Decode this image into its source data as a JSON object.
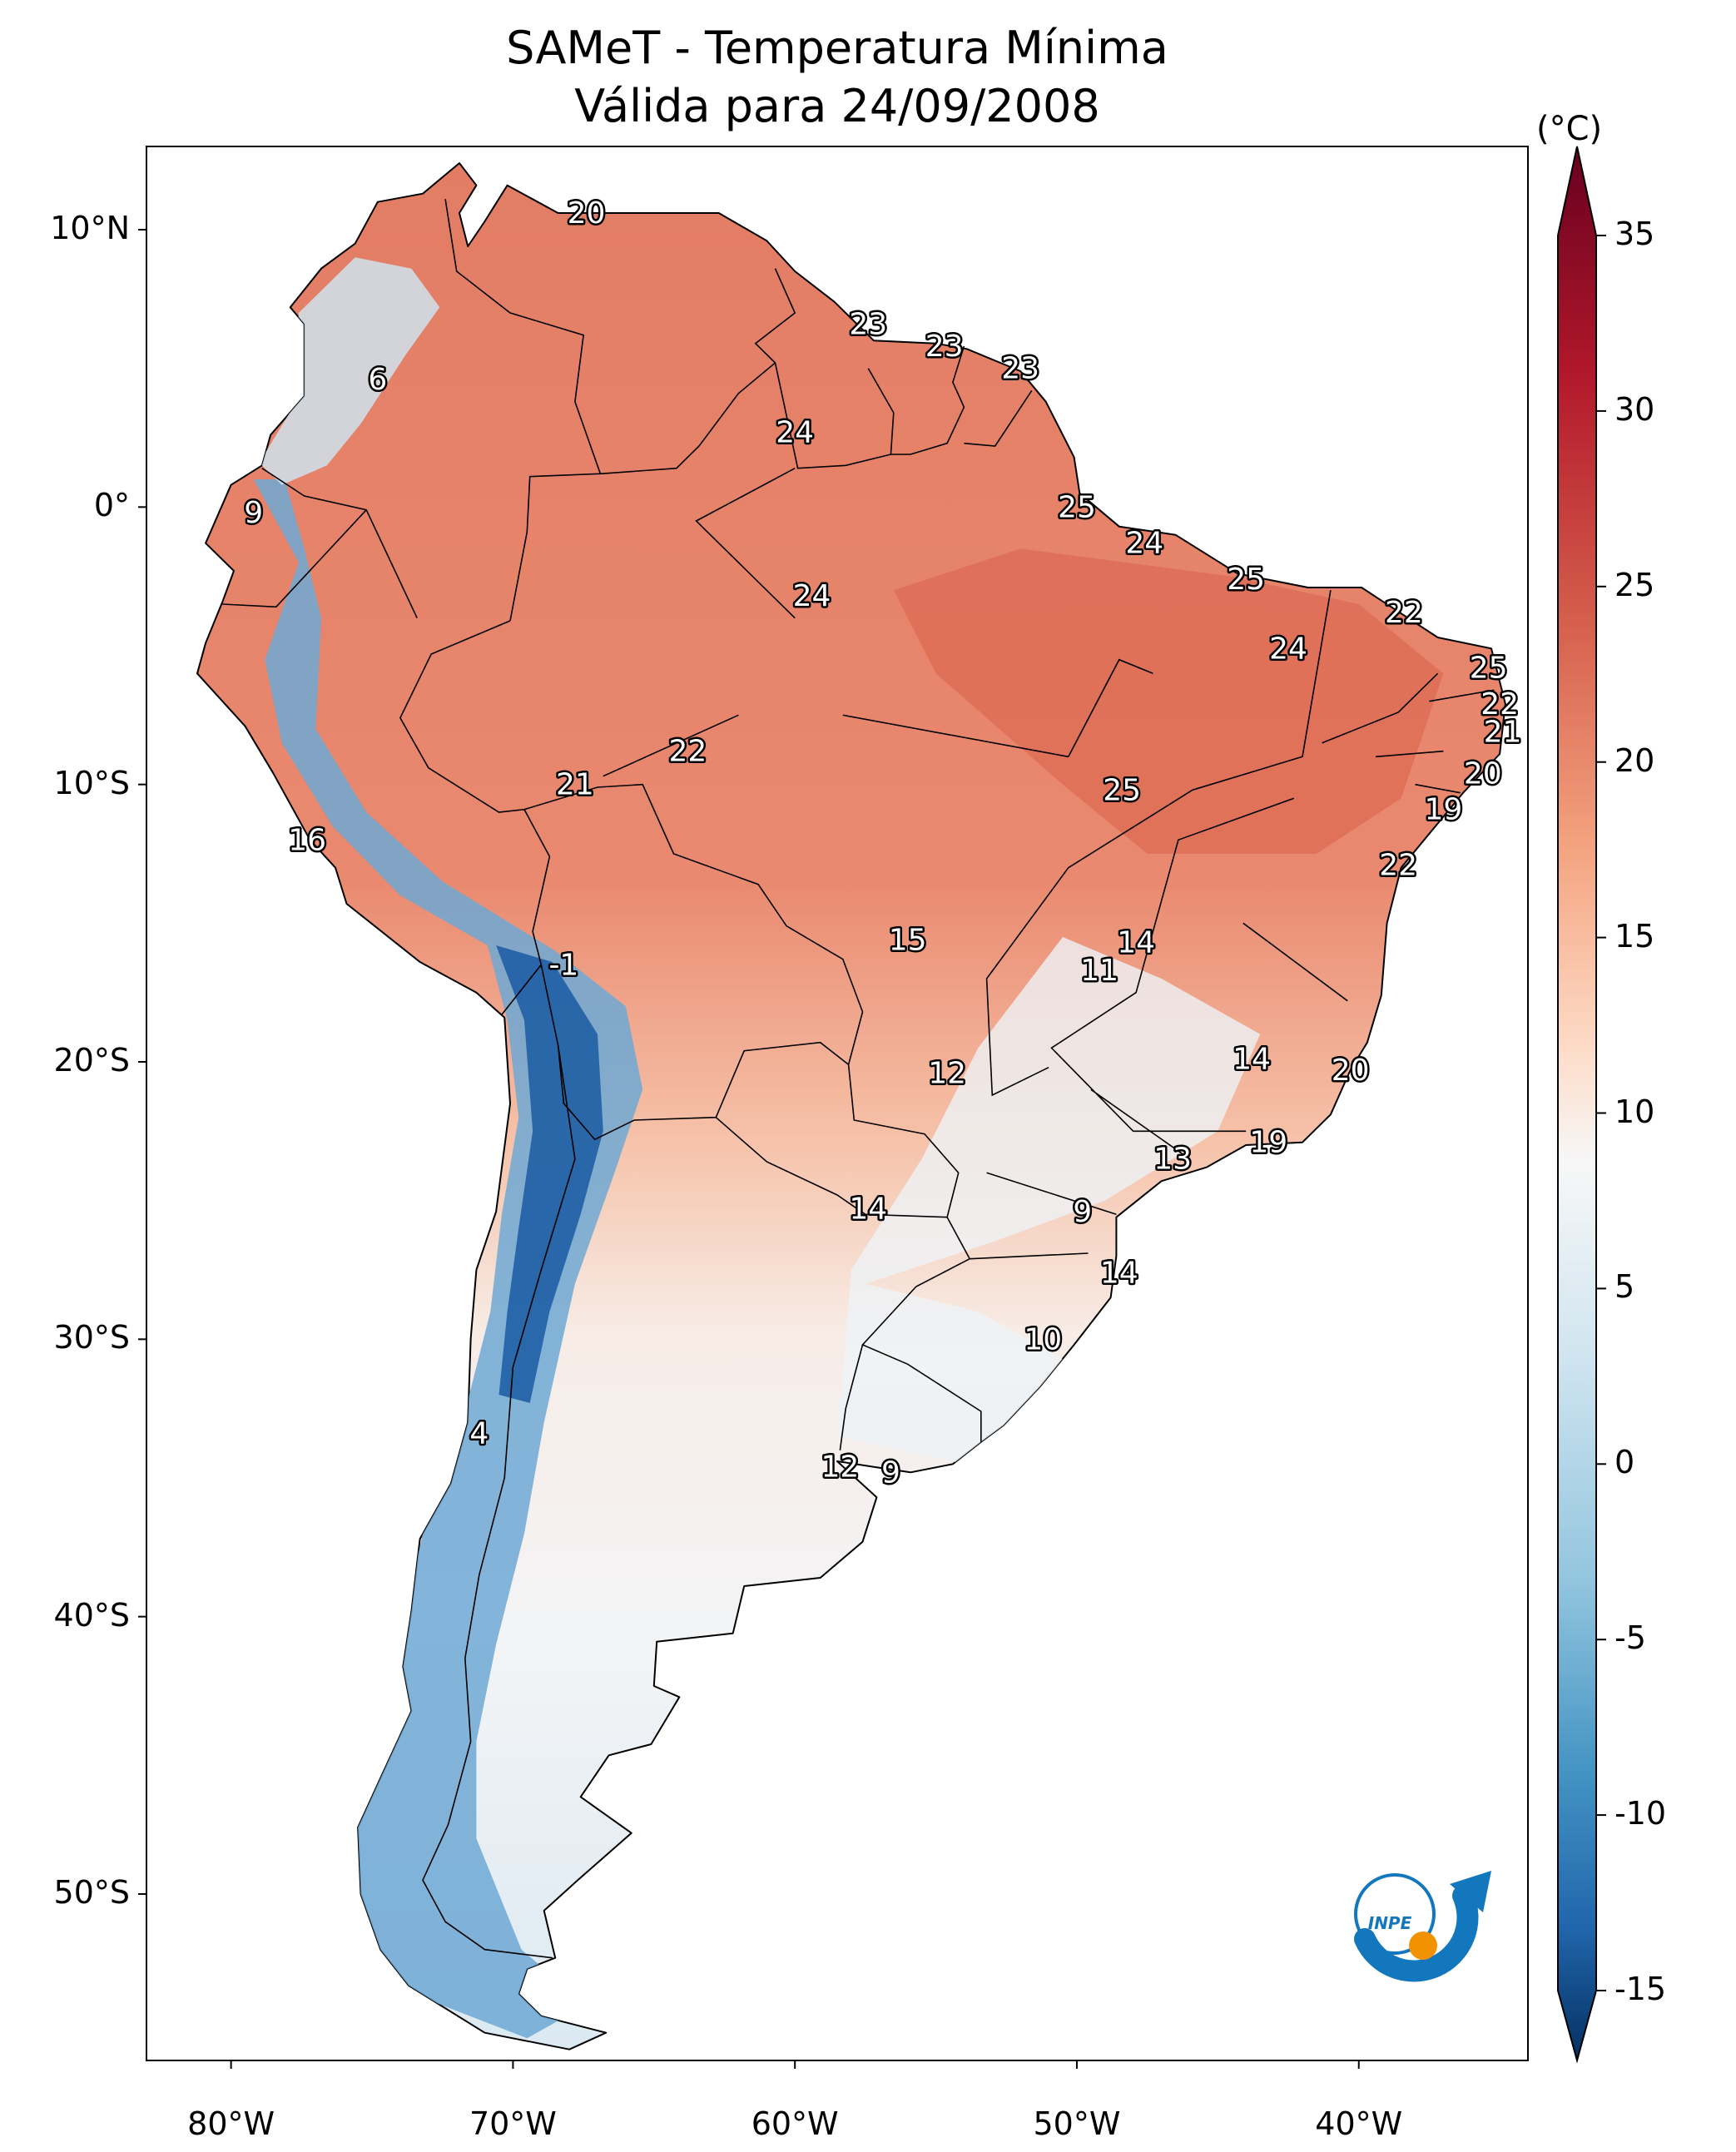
{
  "title_line1": "SAMeT - Temperatura Mínima",
  "title_line2": "Válida para 24/09/2008",
  "unit_label": "(°C)",
  "lat_labels": [
    "10°N",
    "0°",
    "10°S",
    "20°S",
    "30°S",
    "40°S",
    "50°S"
  ],
  "lon_labels": [
    "80°W",
    "70°W",
    "60°W",
    "50°W",
    "40°W"
  ],
  "colorbar": {
    "ticks": [
      "35",
      "30",
      "25",
      "20",
      "15",
      "10",
      "5",
      "0",
      "-5",
      "-10",
      "-15"
    ],
    "range": [
      -15,
      35
    ],
    "colormap": "RdBu_r",
    "extend": "both",
    "low_color": "#08306b",
    "mid_color": "#f7f7f7",
    "high_color": "#67001f"
  },
  "map_extent": {
    "lon": [
      -83,
      -34
    ],
    "lat": [
      -56,
      13
    ]
  },
  "logo_text": "INPE",
  "station_values": [
    {
      "label": "20",
      "lon": -67.4,
      "lat": 10.6
    },
    {
      "label": "6",
      "lon": -74.8,
      "lat": 4.6
    },
    {
      "label": "23",
      "lon": -57.4,
      "lat": 6.6
    },
    {
      "label": "23",
      "lon": -54.7,
      "lat": 5.8
    },
    {
      "label": "23",
      "lon": -52.0,
      "lat": 5.0
    },
    {
      "label": "24",
      "lon": -60.0,
      "lat": 2.7
    },
    {
      "label": "9",
      "lon": -79.2,
      "lat": -0.2
    },
    {
      "label": "25",
      "lon": -50.0,
      "lat": 0.0
    },
    {
      "label": "24",
      "lon": -47.6,
      "lat": -1.3
    },
    {
      "label": "25",
      "lon": -44.0,
      "lat": -2.6
    },
    {
      "label": "22",
      "lon": -38.4,
      "lat": -3.8
    },
    {
      "label": "24",
      "lon": -59.4,
      "lat": -3.2
    },
    {
      "label": "24",
      "lon": -42.5,
      "lat": -5.1
    },
    {
      "label": "25",
      "lon": -35.4,
      "lat": -5.8
    },
    {
      "label": "22",
      "lon": -35.0,
      "lat": -7.1
    },
    {
      "label": "21",
      "lon": -34.9,
      "lat": -8.1
    },
    {
      "label": "22",
      "lon": -63.8,
      "lat": -8.8
    },
    {
      "label": "21",
      "lon": -67.8,
      "lat": -10.0
    },
    {
      "label": "25",
      "lon": -48.4,
      "lat": -10.2
    },
    {
      "label": "20",
      "lon": -35.6,
      "lat": -9.6
    },
    {
      "label": "19",
      "lon": -37.0,
      "lat": -10.9
    },
    {
      "label": "16",
      "lon": -77.3,
      "lat": -12.0
    },
    {
      "label": "22",
      "lon": -38.6,
      "lat": -12.9
    },
    {
      "label": "15",
      "lon": -56.0,
      "lat": -15.6
    },
    {
      "label": "14",
      "lon": -47.9,
      "lat": -15.7
    },
    {
      "label": "11",
      "lon": -49.2,
      "lat": -16.7
    },
    {
      "label": "-1",
      "lon": -68.2,
      "lat": -16.5
    },
    {
      "label": "12",
      "lon": -54.6,
      "lat": -20.4
    },
    {
      "label": "14",
      "lon": -43.8,
      "lat": -19.9
    },
    {
      "label": "20",
      "lon": -40.3,
      "lat": -20.3
    },
    {
      "label": "13",
      "lon": -46.6,
      "lat": -23.5
    },
    {
      "label": "19",
      "lon": -43.2,
      "lat": -22.9
    },
    {
      "label": "14",
      "lon": -57.4,
      "lat": -25.3
    },
    {
      "label": "9",
      "lon": -49.8,
      "lat": -25.4
    },
    {
      "label": "14",
      "lon": -48.5,
      "lat": -27.6
    },
    {
      "label": "10",
      "lon": -51.2,
      "lat": -30.0
    },
    {
      "label": "4",
      "lon": -71.2,
      "lat": -33.4
    },
    {
      "label": "12",
      "lon": -58.4,
      "lat": -34.6
    },
    {
      "label": "9",
      "lon": -56.6,
      "lat": -34.8
    }
  ]
}
